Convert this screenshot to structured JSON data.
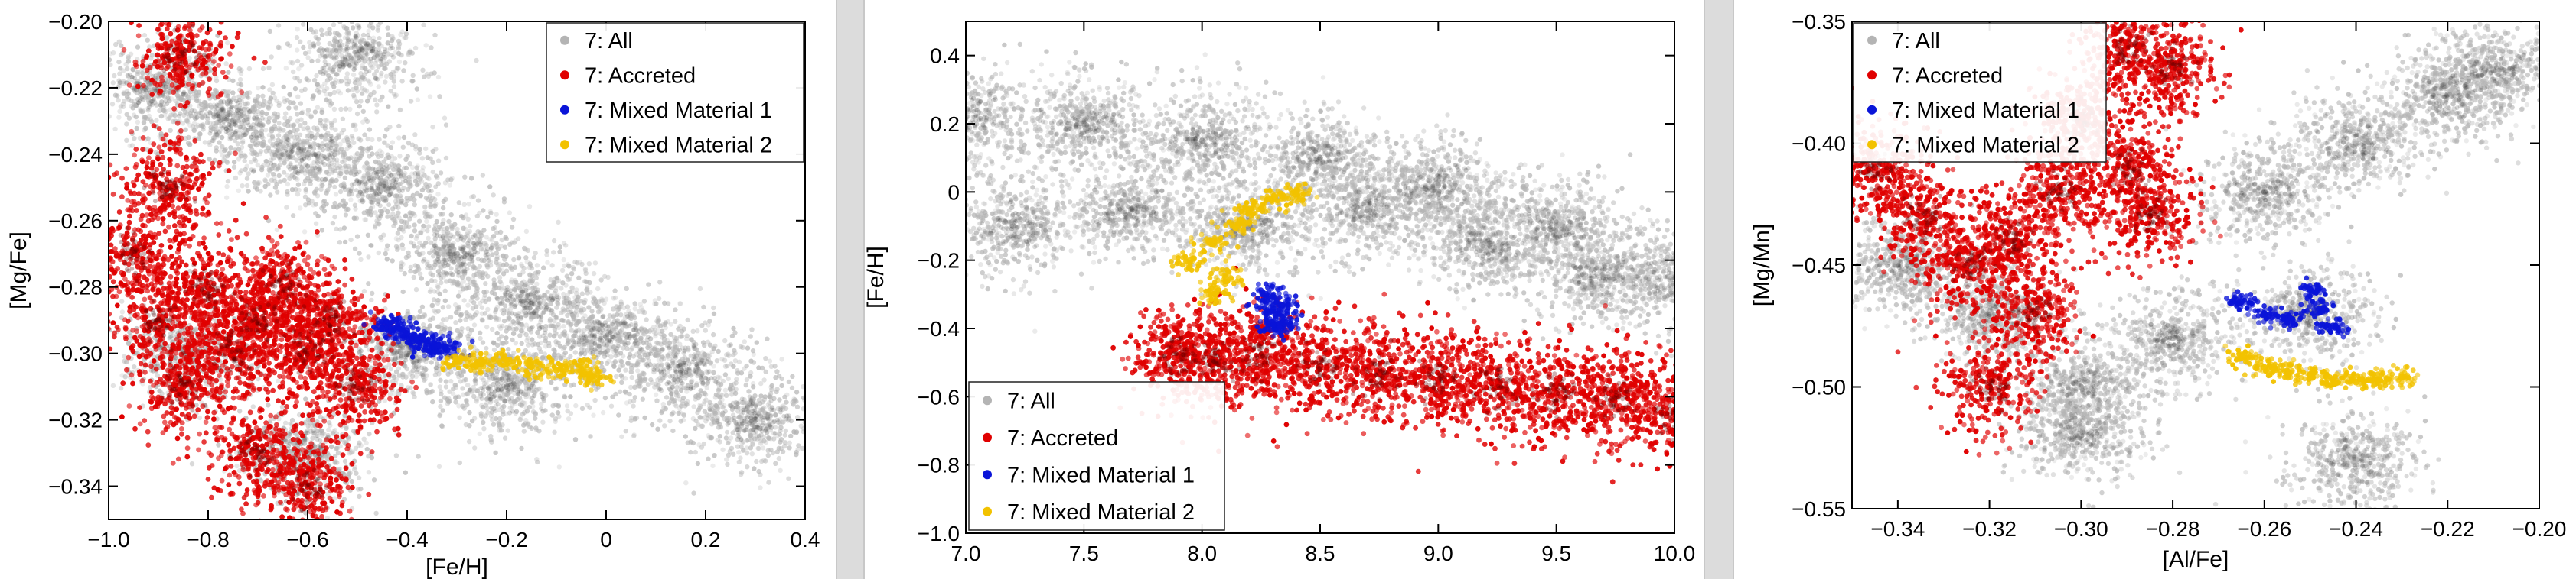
{
  "colors": {
    "all": "#b4b4b4",
    "accreted": "#e00000",
    "mixed1": "#0a14d8",
    "mixed2": "#f2c200",
    "gap": "#dcdcdc"
  },
  "chart_data": [
    {
      "type": "scatter",
      "xlabel": "[Fe/H]",
      "ylabel": "[Mg/Fe]",
      "xlim": [
        -1.0,
        0.4
      ],
      "ylim": [
        -0.35,
        -0.2
      ],
      "xticks": [
        -1.0,
        -0.8,
        -0.6,
        -0.4,
        -0.2,
        0,
        0.2,
        0.4
      ],
      "xtick_labels": [
        "−1.0",
        "−0.8",
        "−0.6",
        "−0.4",
        "−0.2",
        "0",
        "0.2",
        "0.4"
      ],
      "yticks": [
        -0.34,
        -0.32,
        -0.3,
        -0.28,
        -0.26,
        -0.24,
        -0.22,
        -0.2
      ],
      "ytick_labels": [
        "−0.34",
        "−0.32",
        "−0.30",
        "−0.28",
        "−0.26",
        "−0.24",
        "−0.22",
        "−0.20"
      ],
      "legend_position": "top-right",
      "series": [
        {
          "name": "7: All",
          "color": "#b4b4b4",
          "points": [
            [
              -0.9,
              -0.22
            ],
            [
              -0.75,
              -0.23
            ],
            [
              -0.6,
              -0.24
            ],
            [
              -0.45,
              -0.25
            ],
            [
              -0.3,
              -0.27
            ],
            [
              -0.15,
              -0.285
            ],
            [
              0.0,
              -0.295
            ],
            [
              0.15,
              -0.305
            ],
            [
              0.3,
              -0.32
            ],
            [
              -0.2,
              -0.31
            ],
            [
              -0.4,
              -0.3
            ],
            [
              -0.6,
              -0.33
            ],
            [
              -0.85,
              -0.3
            ],
            [
              -0.5,
              -0.21
            ]
          ]
        },
        {
          "name": "7: Accreted",
          "color": "#e00000",
          "points": [
            [
              -0.95,
              -0.27
            ],
            [
              -0.9,
              -0.29
            ],
            [
              -0.85,
              -0.31
            ],
            [
              -0.8,
              -0.28
            ],
            [
              -0.75,
              -0.3
            ],
            [
              -0.7,
              -0.29
            ],
            [
              -0.65,
              -0.28
            ],
            [
              -0.6,
              -0.3
            ],
            [
              -0.55,
              -0.29
            ],
            [
              -0.5,
              -0.31
            ],
            [
              -0.88,
              -0.25
            ],
            [
              -0.7,
              -0.33
            ],
            [
              -0.6,
              -0.34
            ],
            [
              -0.85,
              -0.21
            ]
          ]
        },
        {
          "name": "7: Mixed Material 1",
          "color": "#0a14d8",
          "points": [
            [
              -0.44,
              -0.291
            ],
            [
              -0.42,
              -0.292
            ],
            [
              -0.4,
              -0.294
            ],
            [
              -0.38,
              -0.296
            ],
            [
              -0.36,
              -0.297
            ],
            [
              -0.34,
              -0.298
            ],
            [
              -0.32,
              -0.299
            ]
          ]
        },
        {
          "name": "7: Mixed Material 2",
          "color": "#f2c200",
          "points": [
            [
              -0.3,
              -0.302
            ],
            [
              -0.25,
              -0.303
            ],
            [
              -0.2,
              -0.302
            ],
            [
              -0.15,
              -0.304
            ],
            [
              -0.1,
              -0.305
            ],
            [
              -0.05,
              -0.305
            ],
            [
              -0.03,
              -0.307
            ]
          ]
        }
      ]
    },
    {
      "type": "scatter",
      "xlabel": "",
      "ylabel": "[Fe/H]",
      "xlim": [
        7.0,
        10.0
      ],
      "ylim": [
        -1.0,
        0.5
      ],
      "xticks": [
        7.0,
        7.5,
        8.0,
        8.5,
        9.0,
        9.5,
        10.0
      ],
      "xtick_labels": [
        "7.0",
        "7.5",
        "8.0",
        "8.5",
        "9.0",
        "9.5",
        "10.0"
      ],
      "yticks": [
        -1.0,
        -0.8,
        -0.6,
        -0.4,
        -0.2,
        0,
        0.2,
        0.4
      ],
      "ytick_labels": [
        "−1.0",
        "−0.8",
        "−0.6",
        "−0.4",
        "−0.2",
        "0",
        "0.2",
        "0.4"
      ],
      "legend_position": "bottom-left",
      "series": [
        {
          "name": "7: All",
          "color": "#b4b4b4",
          "points": [
            [
              7.0,
              0.22
            ],
            [
              7.5,
              0.2
            ],
            [
              8.0,
              0.15
            ],
            [
              8.5,
              0.1
            ],
            [
              9.0,
              0.02
            ],
            [
              9.5,
              -0.1
            ],
            [
              10.0,
              -0.25
            ],
            [
              7.2,
              -0.1
            ],
            [
              7.7,
              -0.05
            ],
            [
              8.2,
              -0.1
            ],
            [
              8.7,
              -0.05
            ],
            [
              9.2,
              -0.15
            ],
            [
              9.7,
              -0.25
            ]
          ]
        },
        {
          "name": "7: Accreted",
          "color": "#e00000",
          "points": [
            [
              7.9,
              -0.48
            ],
            [
              8.05,
              -0.5
            ],
            [
              8.25,
              -0.48
            ],
            [
              8.5,
              -0.51
            ],
            [
              8.75,
              -0.53
            ],
            [
              9.0,
              -0.55
            ],
            [
              9.25,
              -0.57
            ],
            [
              9.5,
              -0.59
            ],
            [
              9.75,
              -0.6
            ],
            [
              10.0,
              -0.65
            ]
          ]
        },
        {
          "name": "7: Mixed Material 1",
          "color": "#0a14d8",
          "points": [
            [
              8.27,
              -0.3
            ],
            [
              8.29,
              -0.35
            ],
            [
              8.31,
              -0.4
            ],
            [
              8.33,
              -0.33
            ],
            [
              8.35,
              -0.38
            ]
          ]
        },
        {
          "name": "7: Mixed Material 2",
          "color": "#f2c200",
          "points": [
            [
              7.95,
              -0.2
            ],
            [
              8.05,
              -0.15
            ],
            [
              8.1,
              -0.25
            ],
            [
              8.15,
              -0.1
            ],
            [
              8.2,
              -0.05
            ],
            [
              8.3,
              -0.02
            ],
            [
              8.4,
              0.0
            ],
            [
              8.05,
              -0.3
            ]
          ]
        }
      ]
    },
    {
      "type": "scatter",
      "xlabel": "[Al/Fe]",
      "ylabel": "[Mg/Mn]",
      "xlim": [
        -0.35,
        -0.2
      ],
      "ylim": [
        -0.55,
        -0.35
      ],
      "xticks": [
        -0.34,
        -0.32,
        -0.3,
        -0.28,
        -0.26,
        -0.24,
        -0.22,
        -0.2
      ],
      "xtick_labels": [
        "−0.34",
        "−0.32",
        "−0.30",
        "−0.28",
        "−0.26",
        "−0.24",
        "−0.22",
        "−0.20"
      ],
      "yticks": [
        -0.55,
        -0.5,
        -0.45,
        -0.4,
        -0.35
      ],
      "ytick_labels": [
        "−0.55",
        "−0.50",
        "−0.45",
        "−0.40",
        "−0.35"
      ],
      "legend_position": "top-left",
      "series": [
        {
          "name": "7: All",
          "color": "#b4b4b4",
          "points": [
            [
              -0.34,
              -0.45
            ],
            [
              -0.32,
              -0.47
            ],
            [
              -0.3,
              -0.5
            ],
            [
              -0.28,
              -0.48
            ],
            [
              -0.26,
              -0.42
            ],
            [
              -0.24,
              -0.4
            ],
            [
              -0.22,
              -0.38
            ],
            [
              -0.21,
              -0.37
            ],
            [
              -0.24,
              -0.53
            ],
            [
              -0.25,
              -0.47
            ],
            [
              -0.3,
              -0.52
            ]
          ]
        },
        {
          "name": "7: Accreted",
          "color": "#e00000",
          "points": [
            [
              -0.345,
              -0.41
            ],
            [
              -0.335,
              -0.43
            ],
            [
              -0.325,
              -0.45
            ],
            [
              -0.315,
              -0.44
            ],
            [
              -0.305,
              -0.42
            ],
            [
              -0.3,
              -0.39
            ],
            [
              -0.29,
              -0.41
            ],
            [
              -0.285,
              -0.43
            ],
            [
              -0.31,
              -0.47
            ],
            [
              -0.32,
              -0.5
            ],
            [
              -0.28,
              -0.37
            ],
            [
              -0.29,
              -0.36
            ]
          ]
        },
        {
          "name": "7: Mixed Material 1",
          "color": "#0a14d8",
          "points": [
            [
              -0.265,
              -0.465
            ],
            [
              -0.26,
              -0.47
            ],
            [
              -0.255,
              -0.472
            ],
            [
              -0.25,
              -0.46
            ],
            [
              -0.248,
              -0.468
            ],
            [
              -0.245,
              -0.475
            ]
          ]
        },
        {
          "name": "7: Mixed Material 2",
          "color": "#f2c200",
          "points": [
            [
              -0.265,
              -0.488
            ],
            [
              -0.26,
              -0.492
            ],
            [
              -0.255,
              -0.494
            ],
            [
              -0.25,
              -0.495
            ],
            [
              -0.245,
              -0.497
            ],
            [
              -0.24,
              -0.498
            ],
            [
              -0.235,
              -0.497
            ],
            [
              -0.23,
              -0.496
            ]
          ]
        }
      ]
    }
  ]
}
